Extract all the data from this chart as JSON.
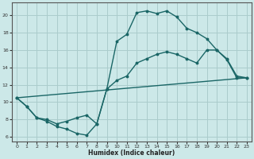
{
  "xlabel": "Humidex (Indice chaleur)",
  "background_color": "#cce8e8",
  "grid_color": "#aacccc",
  "line_color": "#1a6666",
  "xlim": [
    -0.5,
    23.5
  ],
  "ylim": [
    5.5,
    21.5
  ],
  "yticks": [
    6,
    8,
    10,
    12,
    14,
    16,
    18,
    20
  ],
  "xticks": [
    0,
    1,
    2,
    3,
    4,
    5,
    6,
    7,
    8,
    9,
    10,
    11,
    12,
    13,
    14,
    15,
    16,
    17,
    18,
    19,
    20,
    21,
    22,
    23
  ],
  "curve1_x": [
    0,
    1,
    2,
    3,
    4,
    5,
    6,
    7,
    8,
    9,
    10,
    11,
    12,
    13,
    14,
    15,
    16,
    17,
    18,
    19,
    20,
    21,
    22,
    23
  ],
  "curve1_y": [
    10.5,
    9.5,
    8.2,
    7.8,
    7.2,
    6.9,
    6.4,
    6.2,
    7.5,
    11.5,
    17.0,
    17.8,
    20.3,
    20.5,
    20.2,
    20.5,
    19.8,
    18.5,
    18.0,
    17.3,
    16.0,
    14.9,
    12.8,
    12.8
  ],
  "curve2_x": [
    0,
    23
  ],
  "curve2_y": [
    10.5,
    12.8
  ],
  "curve3_x": [
    0,
    1,
    2,
    3,
    4,
    5,
    6,
    7,
    8,
    9,
    10,
    11,
    12,
    13,
    14,
    15,
    16,
    17,
    18,
    19,
    20,
    21,
    22,
    23
  ],
  "curve3_y": [
    10.5,
    9.5,
    8.2,
    8.0,
    7.5,
    7.8,
    8.2,
    8.5,
    7.5,
    11.5,
    12.5,
    13.0,
    14.5,
    15.0,
    15.5,
    15.8,
    15.5,
    15.0,
    14.5,
    16.0,
    16.0,
    15.0,
    13.0,
    12.8
  ]
}
